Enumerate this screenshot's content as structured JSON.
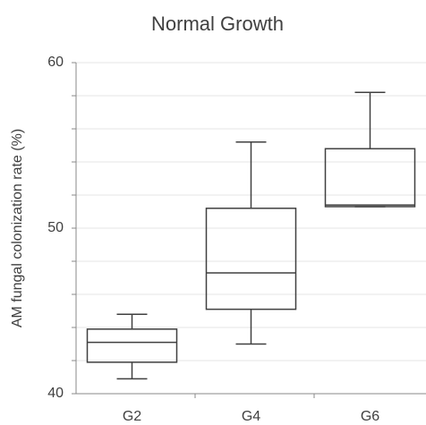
{
  "chart_data": {
    "type": "box",
    "title": "Normal Growth",
    "y_label": "AM fungal colonization rate (%)",
    "categories": [
      "G2",
      "G4",
      "G6"
    ],
    "boxes": [
      {
        "min": 40.9,
        "q1": 41.9,
        "median": 43.1,
        "q3": 43.9,
        "max": 44.8
      },
      {
        "min": 43.0,
        "q1": 45.1,
        "median": 47.3,
        "q3": 51.2,
        "max": 55.2
      },
      {
        "min": 51.3,
        "q1": 51.3,
        "median": 51.4,
        "q3": 54.8,
        "max": 58.2
      }
    ],
    "color": "#404040",
    "ylim": [
      40,
      60
    ],
    "yticks": [
      40,
      50,
      60
    ],
    "minor_yticks": [
      42,
      44,
      46,
      48,
      52,
      54,
      56,
      58
    ],
    "grid": true
  }
}
